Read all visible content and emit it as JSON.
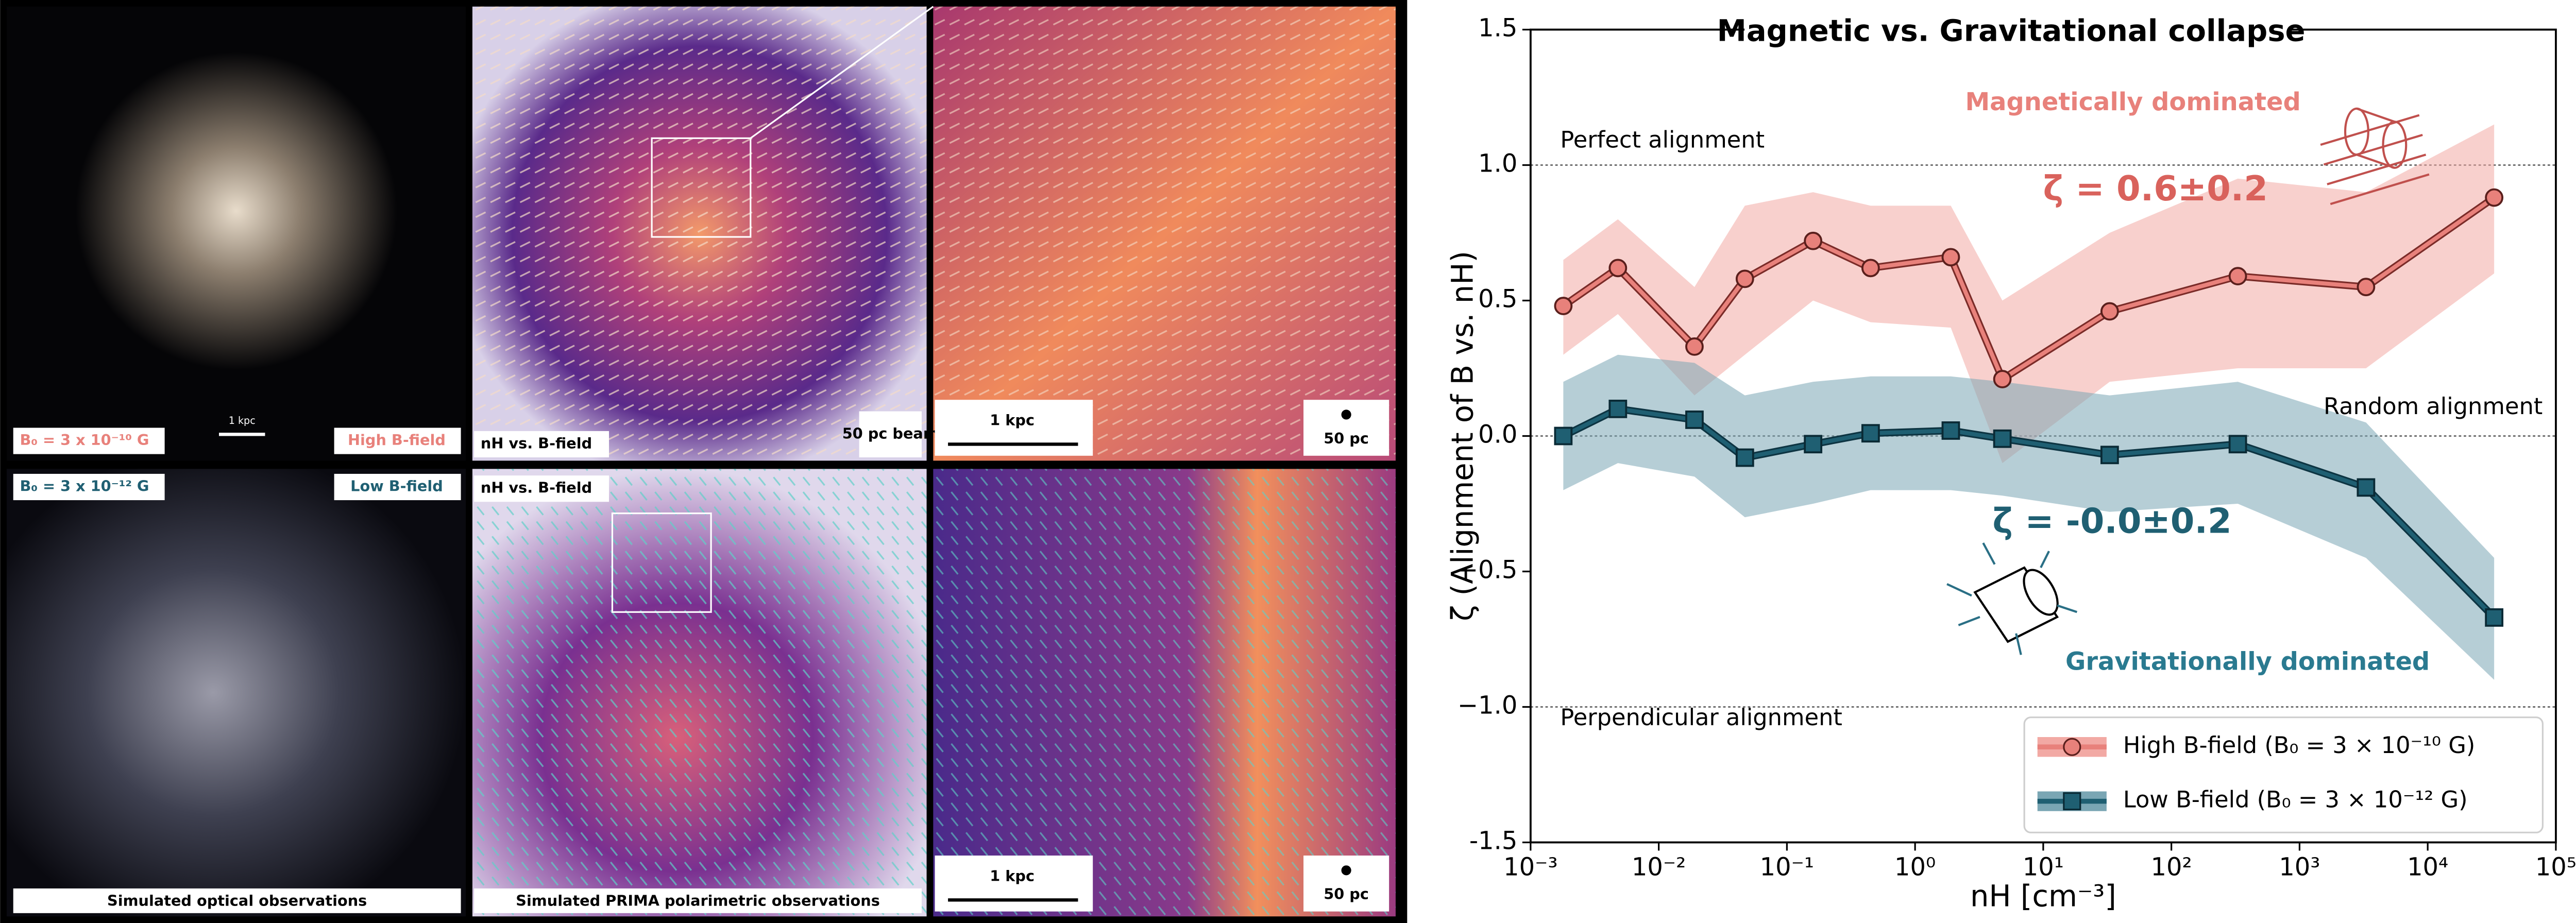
{
  "panels": {
    "optical_top_field": "B₀ = 3 x 10⁻¹⁰ G",
    "optical_top_tag": "High B-field",
    "optical_scale": "1 kpc",
    "optical_bottom_field": "B₀ = 3 x 10⁻¹² G",
    "optical_bottom_tag": "Low B-field",
    "optical_caption": "Simulated optical observations",
    "prima_top_label": "nH vs. B-field",
    "prima_top_beam": "50 pc beam",
    "prima_bottom_label": "nH vs. B-field",
    "prima_caption": "Simulated PRIMA polarimetric observations",
    "zoom_top_scale": "1 kpc",
    "zoom_top_beam": "50 pc",
    "zoom_bottom_scale": "1 kpc",
    "zoom_bottom_beam": "50 pc"
  },
  "chart_data": {
    "type": "line",
    "title": "Magnetic vs. Gravitational collapse",
    "x_label": "nH [cm⁻³]",
    "y_label": "ζ (Alignment of B vs. nH)",
    "log_x": true,
    "x": [
      0.0018,
      0.0048,
      0.019,
      0.047,
      0.16,
      0.45,
      1.9,
      4.8,
      33,
      330,
      3300,
      33000
    ],
    "series": [
      {
        "name": "High B-field (B₀ = 3 × 10⁻¹⁰ G)",
        "color": "#e8817b",
        "band_color": "#f2a9a4",
        "values": [
          0.48,
          0.62,
          0.33,
          0.58,
          0.72,
          0.62,
          0.66,
          0.21,
          0.46,
          0.59,
          0.55,
          0.88
        ],
        "upper": [
          0.65,
          0.8,
          0.55,
          0.85,
          0.9,
          0.85,
          0.85,
          0.5,
          0.75,
          0.95,
          0.9,
          1.15
        ],
        "lower": [
          0.3,
          0.45,
          0.15,
          0.3,
          0.5,
          0.42,
          0.4,
          -0.1,
          0.2,
          0.25,
          0.25,
          0.6
        ]
      },
      {
        "name": "Low B-field (B₀ = 3 × 10⁻¹² G)",
        "color": "#1f5f72",
        "band_color": "#7aa6b4",
        "values": [
          0.0,
          0.1,
          0.06,
          -0.08,
          -0.03,
          0.01,
          0.02,
          -0.01,
          -0.07,
          -0.03,
          -0.19,
          -0.67
        ],
        "upper": [
          0.2,
          0.3,
          0.27,
          0.15,
          0.2,
          0.22,
          0.22,
          0.2,
          0.15,
          0.2,
          0.05,
          -0.45
        ],
        "lower": [
          -0.2,
          -0.1,
          -0.15,
          -0.3,
          -0.25,
          -0.2,
          -0.2,
          -0.22,
          -0.28,
          -0.25,
          -0.45,
          -0.9
        ]
      }
    ],
    "xlim": [
      0.001,
      100000
    ],
    "xticks": [
      {
        "value": 0.001,
        "label": "10⁻³"
      },
      {
        "value": 0.01,
        "label": "10⁻²"
      },
      {
        "value": 0.1,
        "label": "10⁻¹"
      },
      {
        "value": 1,
        "label": "10⁰"
      },
      {
        "value": 10,
        "label": "10¹"
      },
      {
        "value": 100,
        "label": "10²"
      },
      {
        "value": 1000,
        "label": "10³"
      },
      {
        "value": 10000,
        "label": "10⁴"
      },
      {
        "value": 100000,
        "label": "10⁵"
      }
    ],
    "ylim": [
      -1.5,
      1.5
    ],
    "yticks": [
      -1.5,
      {
        "value": -1,
        "label": "−1.0"
      },
      {
        "value": -0.5,
        "label": "−0.5"
      },
      {
        "value": 0,
        "label": "0.0"
      },
      0.5,
      {
        "value": 1,
        "label": "1.0"
      },
      1.5
    ],
    "reference_lines": [
      1,
      0,
      -1
    ],
    "annotations": [
      "Perfect alignment",
      "Random alignment",
      "Perpendicular alignment",
      "Magnetically dominated",
      "Gravitationally dominated",
      "ζ = 0.6±0.2",
      "ζ = -0.0±0.2"
    ],
    "legend": "lower right"
  }
}
